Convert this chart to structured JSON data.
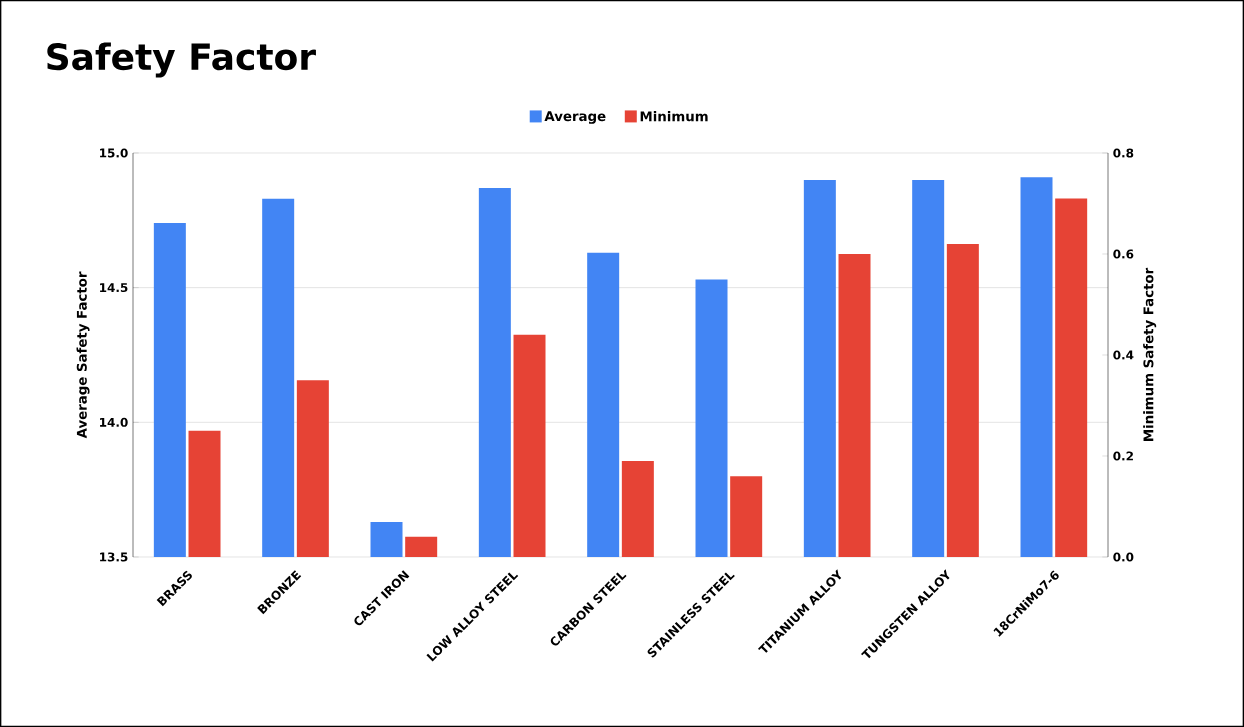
{
  "chart_data": {
    "type": "bar",
    "title": "Safety Factor",
    "categories": [
      "BRASS",
      "BRONZE",
      "CAST IRON",
      "LOW ALLOY STEEL",
      "CARBON STEEL",
      "STAINLESS STEEL",
      "TITANIUM ALLOY",
      "TUNGSTEN ALLOY",
      "18CrNiMo7-6"
    ],
    "series": [
      {
        "name": "Average",
        "color": "#4285f4",
        "values": [
          14.74,
          14.83,
          13.63,
          14.87,
          14.63,
          14.53,
          14.9,
          14.9,
          14.91
        ]
      },
      {
        "name": "Minimum",
        "color": "#e64335",
        "axis": "y2",
        "values": [
          0.25,
          0.35,
          0.04,
          0.44,
          0.19,
          0.16,
          0.6,
          0.62,
          0.71
        ]
      }
    ],
    "ylabel": "Average Safety Factor",
    "y2label": "Minimum Safety Factor",
    "ylim": [
      13.5,
      15
    ],
    "yticks": [
      {
        "value": 13.5,
        "label": "13.5"
      },
      {
        "value": 14,
        "label": "14.0"
      },
      {
        "value": 14.5,
        "label": "14.5"
      },
      {
        "value": 15,
        "label": "15.0"
      }
    ],
    "y2lim": [
      0,
      0.8
    ],
    "y2ticks": [
      {
        "value": 0,
        "label": "0.0"
      },
      {
        "value": 0.2,
        "label": "0.2"
      },
      {
        "value": 0.4,
        "label": "0.4"
      },
      {
        "value": 0.6,
        "label": "0.6"
      },
      {
        "value": 0.8,
        "label": "0.8"
      }
    ],
    "grid": "y",
    "legend": "top"
  }
}
